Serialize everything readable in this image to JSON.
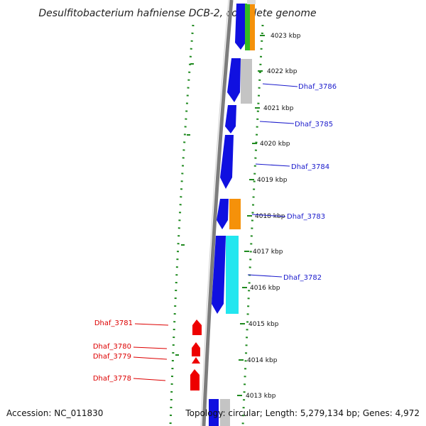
{
  "title": "Desulfitobacterium hafniense DCB-2, complete genome",
  "footer": {
    "accession": "Accession: NC_011830",
    "topology": "Topology: circular; Length: 5,279,134 bp; Genes: 4,972"
  },
  "colors": {
    "backbone": "#7d7d7d",
    "blue_gene": "#1010e0",
    "red_gene": "#ee0000",
    "orange_gene": "#f5910a",
    "cyan_gene": "#22e6ef",
    "gray_gene": "#c4c4c4",
    "green_gene": "#33bb22",
    "dotted_ring": "#1f8a1f",
    "label_blue": "#1a1acc",
    "label_red": "#dd0000"
  },
  "ticks": [
    "4023 kbp",
    "4022 kbp",
    "4021 kbp",
    "4020 kbp",
    "4019 kbp",
    "4018 kbp",
    "4017 kbp",
    "4016 kbp",
    "4015 kbp",
    "4014 kbp",
    "4013 kbp"
  ],
  "gene_labels_right": [
    "Dhaf_3786",
    "Dhaf_3785",
    "Dhaf_3784",
    "Dhaf_3783",
    "Dhaf_3782"
  ],
  "gene_labels_left": [
    "Dhaf_3781",
    "Dhaf_3780",
    "Dhaf_3779",
    "Dhaf_3778"
  ]
}
